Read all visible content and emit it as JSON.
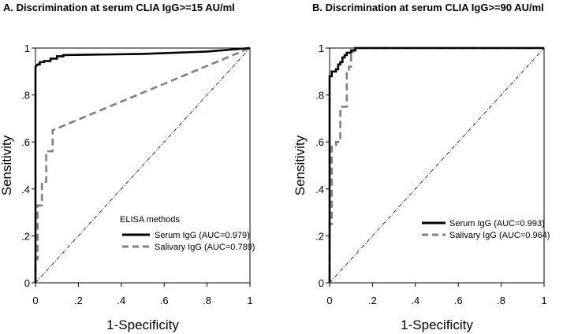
{
  "chart_data": [
    {
      "type": "line",
      "title": "A. Discrimination at serum CLIA IgG>=15 AU/ml",
      "xlabel": "1-Specificity",
      "ylabel": "Sensitivity",
      "xlim": [
        0,
        1
      ],
      "ylim": [
        0,
        1
      ],
      "xticks": [
        "0",
        ".2",
        ".4",
        ".6",
        ".8",
        "1"
      ],
      "yticks": [
        "0",
        ".2",
        ".4",
        ".6",
        ".8",
        "1"
      ],
      "legend": {
        "title": "ELISA methods",
        "placement": "bottom-right"
      },
      "series": [
        {
          "name": "Serum IgG (AUC=0.979)",
          "color": "#000000",
          "style": "solid",
          "points": [
            [
              0,
              0
            ],
            [
              0,
              0.92
            ],
            [
              0.01,
              0.93
            ],
            [
              0.02,
              0.93
            ],
            [
              0.02,
              0.94
            ],
            [
              0.04,
              0.94
            ],
            [
              0.04,
              0.945
            ],
            [
              0.07,
              0.945
            ],
            [
              0.07,
              0.955
            ],
            [
              0.1,
              0.955
            ],
            [
              0.1,
              0.965
            ],
            [
              0.13,
              0.965
            ],
            [
              0.13,
              0.97
            ],
            [
              0.5,
              0.975
            ],
            [
              0.8,
              0.985
            ],
            [
              1,
              1
            ]
          ]
        },
        {
          "name": "Salivary IgG (AUC=0.789)",
          "color": "#808080",
          "style": "dashed",
          "points": [
            [
              0,
              0
            ],
            [
              0,
              0.1
            ],
            [
              0.01,
              0.1
            ],
            [
              0.01,
              0.33
            ],
            [
              0.03,
              0.33
            ],
            [
              0.03,
              0.43
            ],
            [
              0.05,
              0.43
            ],
            [
              0.05,
              0.55
            ],
            [
              0.06,
              0.55
            ],
            [
              0.06,
              0.56
            ],
            [
              0.08,
              0.56
            ],
            [
              0.08,
              0.65
            ],
            [
              1,
              1
            ]
          ]
        },
        {
          "name": "",
          "color": "#000000",
          "style": "dashdot",
          "points": [
            [
              0,
              0
            ],
            [
              1,
              1
            ]
          ]
        }
      ]
    },
    {
      "type": "line",
      "title": "B. Discrimination at serum CLIA IgG>=90 AU/ml",
      "xlabel": "1-Specificity",
      "ylabel": "Sensitivity",
      "xlim": [
        0,
        1
      ],
      "ylim": [
        0,
        1
      ],
      "xticks": [
        "0",
        ".2",
        ".4",
        ".6",
        ".8",
        "1"
      ],
      "yticks": [
        "0",
        ".2",
        ".4",
        ".6",
        ".8",
        "1"
      ],
      "legend": {
        "title": "",
        "placement": "bottom-right"
      },
      "series": [
        {
          "name": "Serum IgG (AUC=0.993)",
          "color": "#000000",
          "style": "solid",
          "points": [
            [
              0,
              0
            ],
            [
              0,
              0.88
            ],
            [
              0.01,
              0.88
            ],
            [
              0.01,
              0.9
            ],
            [
              0.03,
              0.9
            ],
            [
              0.03,
              0.91
            ],
            [
              0.04,
              0.91
            ],
            [
              0.04,
              0.93
            ],
            [
              0.05,
              0.93
            ],
            [
              0.05,
              0.94
            ],
            [
              0.06,
              0.94
            ],
            [
              0.06,
              0.96
            ],
            [
              0.07,
              0.96
            ],
            [
              0.07,
              0.97
            ],
            [
              0.08,
              0.97
            ],
            [
              0.08,
              0.98
            ],
            [
              0.1,
              0.98
            ],
            [
              0.1,
              0.99
            ],
            [
              0.12,
              0.99
            ],
            [
              0.12,
              1
            ],
            [
              1,
              1
            ]
          ]
        },
        {
          "name": "Salivary IgG (AUC=0.964)",
          "color": "#808080",
          "style": "dashed",
          "points": [
            [
              0,
              0
            ],
            [
              0,
              0.25
            ],
            [
              0.01,
              0.25
            ],
            [
              0.01,
              0.58
            ],
            [
              0.03,
              0.58
            ],
            [
              0.03,
              0.6
            ],
            [
              0.05,
              0.6
            ],
            [
              0.05,
              0.75
            ],
            [
              0.08,
              0.75
            ],
            [
              0.08,
              0.9
            ],
            [
              0.09,
              0.9
            ],
            [
              0.09,
              0.92
            ],
            [
              0.1,
              0.92
            ],
            [
              0.1,
              0.97
            ],
            [
              0.11,
              0.97
            ],
            [
              0.11,
              0.99
            ],
            [
              0.12,
              0.99
            ],
            [
              0.12,
              1
            ],
            [
              1,
              1
            ]
          ]
        },
        {
          "name": "",
          "color": "#000000",
          "style": "dashdot",
          "points": [
            [
              0,
              0
            ],
            [
              1,
              1
            ]
          ]
        }
      ]
    }
  ]
}
